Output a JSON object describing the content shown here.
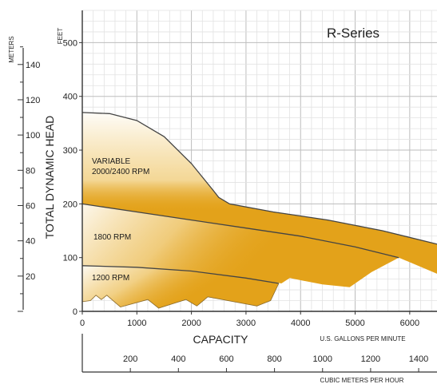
{
  "chart_data": {
    "type": "area",
    "title": "R-Series",
    "xlabel": "CAPACITY",
    "x_unit_label": "U.S. GALLONS PER MINUTE",
    "x2_unit_label": "CUBIC METERS PER HOUR",
    "ylabel": "TOTAL DYNAMIC HEAD",
    "y_unit_label": "FEET",
    "y2_unit_label": "METERS",
    "xlim": [
      0,
      6500
    ],
    "ylim": [
      0,
      560
    ],
    "y_ticks": [
      "0",
      "100",
      "200",
      "300",
      "400",
      "500"
    ],
    "x_ticks": [
      "0",
      "1000",
      "2000",
      "3000",
      "4000",
      "5000",
      "6000"
    ],
    "x2_ticks": [
      "200",
      "400",
      "600",
      "800",
      "1000",
      "1200",
      "1400"
    ],
    "y2_ticks": [
      "20",
      "40",
      "60",
      "80",
      "100",
      "120",
      "140"
    ],
    "grid": true,
    "series": [
      {
        "name": "VARIABLE 2000/2400 RPM",
        "label_lines": [
          "VARIABLE",
          "2000/2400 RPM"
        ],
        "top": [
          [
            0,
            370
          ],
          [
            500,
            368
          ],
          [
            1000,
            355
          ],
          [
            1500,
            325
          ],
          [
            2000,
            275
          ],
          [
            2400,
            225
          ],
          [
            2500,
            212
          ],
          [
            2700,
            200
          ],
          [
            3500,
            185
          ],
          [
            4500,
            170
          ],
          [
            5500,
            150
          ],
          [
            6500,
            125
          ]
        ],
        "bottom": [
          [
            0,
            200
          ],
          [
            1000,
            185
          ],
          [
            2000,
            170
          ],
          [
            3000,
            155
          ],
          [
            4000,
            140
          ],
          [
            5000,
            120
          ],
          [
            5800,
            100
          ],
          [
            6500,
            70
          ]
        ]
      },
      {
        "name": "1800 RPM",
        "top": [
          [
            0,
            200
          ],
          [
            1000,
            185
          ],
          [
            2000,
            170
          ],
          [
            3000,
            155
          ],
          [
            4000,
            140
          ],
          [
            5000,
            120
          ],
          [
            5800,
            100
          ]
        ],
        "bottom": [
          [
            0,
            85
          ],
          [
            1000,
            82
          ],
          [
            2000,
            75
          ],
          [
            3000,
            62
          ],
          [
            3650,
            52
          ],
          [
            3800,
            62
          ],
          [
            4400,
            50
          ],
          [
            4900,
            45
          ],
          [
            5300,
            73
          ],
          [
            5800,
            100
          ]
        ]
      },
      {
        "name": "1200 RPM",
        "top": [
          [
            0,
            85
          ],
          [
            1000,
            82
          ],
          [
            2000,
            75
          ],
          [
            3000,
            62
          ],
          [
            3600,
            52
          ]
        ],
        "bottom": [
          [
            0,
            18
          ],
          [
            150,
            20
          ],
          [
            250,
            30
          ],
          [
            350,
            22
          ],
          [
            450,
            30
          ],
          [
            700,
            8
          ],
          [
            1200,
            22
          ],
          [
            1400,
            6
          ],
          [
            1900,
            22
          ],
          [
            2100,
            10
          ],
          [
            2300,
            27
          ],
          [
            3200,
            10
          ],
          [
            3450,
            20
          ],
          [
            3600,
            52
          ]
        ]
      }
    ],
    "colors": {
      "fill": "#e3a21a",
      "fill_light": "#f7e4b5",
      "line": "#444444",
      "grid": "#d9d9d9"
    }
  }
}
